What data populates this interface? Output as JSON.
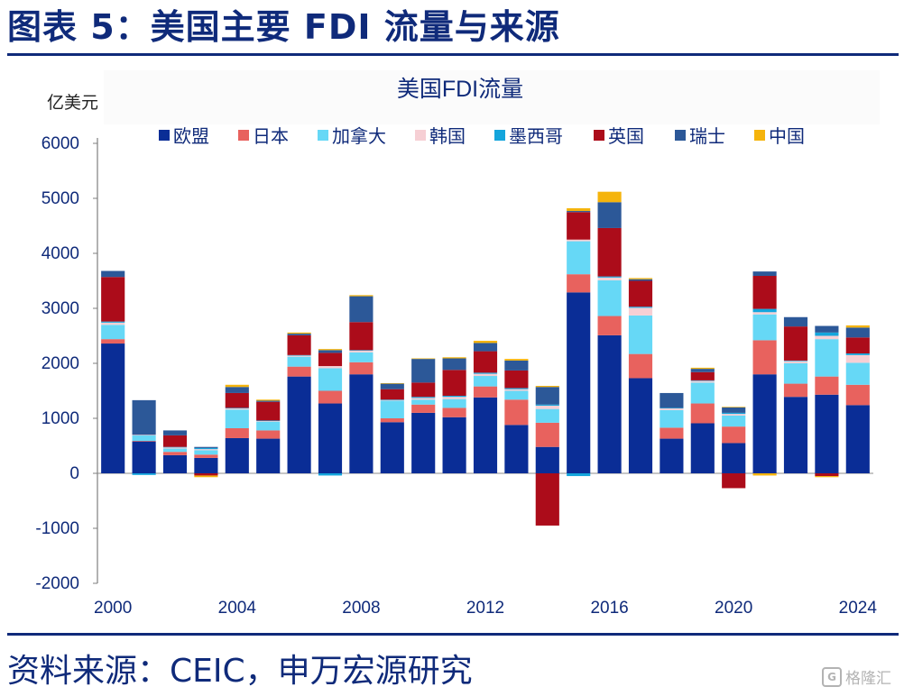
{
  "header": {
    "title": "图表 5：美国主要 FDI 流量与来源"
  },
  "footer": {
    "source": "资料来源：CEIC，申万宏源研究",
    "watermark": "格隆汇",
    "watermark_logo": "G"
  },
  "chart_data": {
    "type": "bar",
    "stacked": true,
    "title": "美国FDI流量",
    "ylabel": "亿美元",
    "ylim": [
      -2000,
      6000
    ],
    "yticks": [
      -2000,
      -1000,
      0,
      1000,
      2000,
      3000,
      4000,
      5000,
      6000
    ],
    "categories": [
      2000,
      2001,
      2002,
      2003,
      2004,
      2005,
      2006,
      2007,
      2008,
      2009,
      2010,
      2011,
      2012,
      2013,
      2014,
      2015,
      2016,
      2017,
      2018,
      2019,
      2020,
      2021,
      2022,
      2023,
      2024
    ],
    "xtick_labels": [
      "2000",
      "2004",
      "2008",
      "2012",
      "2016",
      "2020",
      "2024"
    ],
    "legend_position": "top",
    "series": [
      {
        "name": "欧盟",
        "color": "#0a2d96",
        "values": [
          2360,
          580,
          330,
          280,
          640,
          630,
          1760,
          1270,
          1800,
          930,
          1100,
          1020,
          1380,
          880,
          480,
          3290,
          2510,
          1730,
          630,
          910,
          550,
          1800,
          1390,
          1430,
          1240
        ]
      },
      {
        "name": "日本",
        "color": "#e8625e",
        "values": [
          80,
          10,
          60,
          60,
          180,
          150,
          180,
          230,
          220,
          70,
          150,
          170,
          200,
          460,
          440,
          330,
          350,
          440,
          200,
          360,
          300,
          620,
          240,
          330,
          370
        ]
      },
      {
        "name": "加拿大",
        "color": "#66d8f6",
        "values": [
          260,
          100,
          60,
          80,
          340,
          160,
          180,
          410,
          180,
          320,
          90,
          160,
          190,
          160,
          250,
          600,
          650,
          700,
          320,
          380,
          200,
          470,
          370,
          680,
          400
        ]
      },
      {
        "name": "韩国",
        "color": "#f6cfd4",
        "values": [
          40,
          10,
          20,
          20,
          20,
          10,
          20,
          40,
          30,
          10,
          30,
          40,
          40,
          30,
          60,
          30,
          50,
          140,
          30,
          30,
          30,
          40,
          40,
          60,
          140
        ]
      },
      {
        "name": "墨西哥",
        "color": "#14a5dc",
        "values": [
          20,
          -30,
          10,
          20,
          10,
          10,
          10,
          -40,
          10,
          10,
          20,
          20,
          20,
          20,
          20,
          -50,
          20,
          20,
          10,
          10,
          20,
          60,
          10,
          60,
          30
        ]
      },
      {
        "name": "英国",
        "color": "#ac0c1a",
        "values": [
          810,
          0,
          210,
          -40,
          270,
          340,
          360,
          240,
          510,
          190,
          260,
          470,
          390,
          320,
          -950,
          500,
          880,
          470,
          0,
          150,
          -270,
          600,
          620,
          -50,
          290
        ]
      },
      {
        "name": "瑞士",
        "color": "#2c5898",
        "values": [
          110,
          630,
          90,
          20,
          110,
          20,
          30,
          50,
          470,
          100,
          430,
          210,
          150,
          180,
          320,
          20,
          470,
          30,
          270,
          60,
          100,
          80,
          170,
          120,
          180
        ]
      },
      {
        "name": "中国",
        "color": "#f5b40c",
        "values": [
          0,
          0,
          0,
          -30,
          40,
          20,
          20,
          20,
          20,
          10,
          10,
          20,
          40,
          30,
          20,
          50,
          190,
          20,
          0,
          20,
          10,
          -40,
          0,
          -20,
          40
        ]
      }
    ]
  }
}
